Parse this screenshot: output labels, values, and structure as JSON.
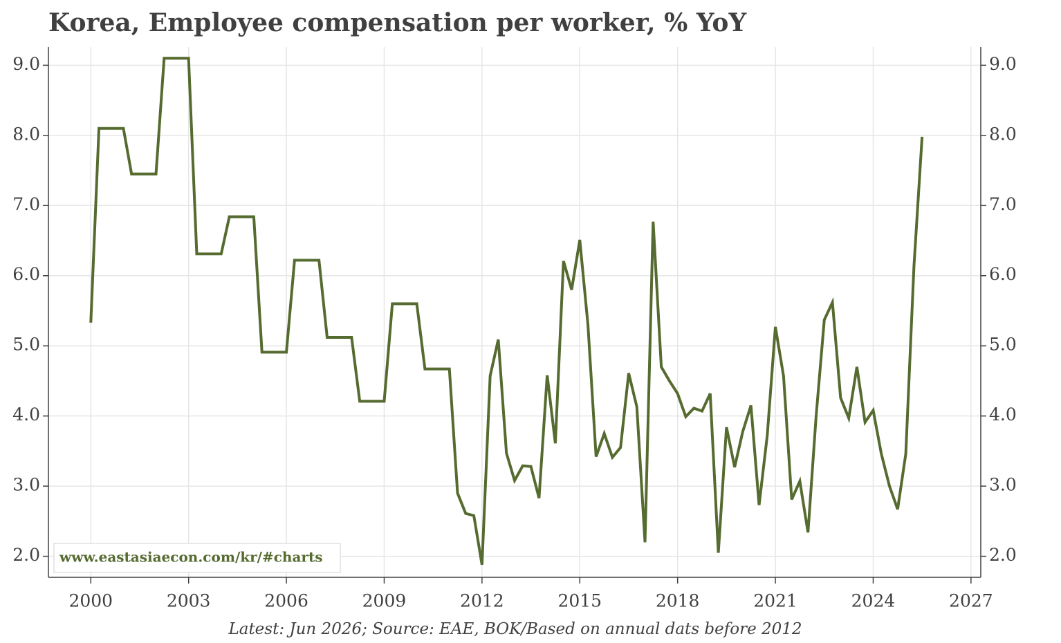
{
  "chart_data": {
    "type": "line",
    "title": "Korea, Employee compensation per worker, % YoY",
    "footer": "Latest: Jun 2026; Source: EAE, BOK/Based on annual dats before 2012",
    "watermark": "www.eastasiaecon.com/kr/#charts",
    "x": [
      2000,
      2000.25,
      2000.5,
      2000.75,
      2001,
      2001.25,
      2001.5,
      2001.75,
      2002,
      2002.25,
      2002.5,
      2002.75,
      2003,
      2003.25,
      2003.5,
      2003.75,
      2004,
      2004.25,
      2004.5,
      2004.75,
      2005,
      2005.25,
      2005.5,
      2005.75,
      2006,
      2006.25,
      2006.5,
      2006.75,
      2007,
      2007.25,
      2007.5,
      2007.75,
      2008,
      2008.25,
      2008.5,
      2008.75,
      2009,
      2009.25,
      2009.5,
      2009.75,
      2010,
      2010.25,
      2010.5,
      2010.75,
      2011,
      2011.25,
      2011.5,
      2011.75,
      2012,
      2012.25,
      2012.5,
      2012.75,
      2013,
      2013.25,
      2013.5,
      2013.75,
      2014,
      2014.25,
      2014.5,
      2014.75,
      2015,
      2015.25,
      2015.5,
      2015.75,
      2016,
      2016.25,
      2016.5,
      2016.75,
      2017,
      2017.25,
      2017.5,
      2017.75,
      2018,
      2018.25,
      2018.5,
      2018.75,
      2019,
      2019.25,
      2019.5,
      2019.75,
      2020,
      2020.25,
      2020.5,
      2020.75,
      2021,
      2021.25,
      2021.5,
      2021.75,
      2022,
      2022.25,
      2022.5,
      2022.75,
      2023,
      2023.25,
      2023.5,
      2023.75,
      2024,
      2024.25,
      2024.5,
      2024.75,
      2025,
      2025.25,
      2025.5
    ],
    "series": [
      {
        "color": "#566b30",
        "values": [
          5.33,
          8.1,
          8.1,
          8.1,
          8.1,
          7.45,
          7.45,
          7.45,
          7.45,
          9.1,
          9.1,
          9.1,
          9.1,
          6.31,
          6.31,
          6.31,
          6.31,
          6.84,
          6.84,
          6.84,
          6.84,
          4.91,
          4.91,
          4.91,
          4.91,
          6.22,
          6.22,
          6.22,
          6.22,
          5.12,
          5.12,
          5.12,
          5.12,
          4.21,
          4.21,
          4.21,
          4.21,
          5.6,
          5.6,
          5.6,
          5.6,
          4.67,
          4.67,
          4.67,
          4.67,
          2.9,
          2.61,
          2.58,
          1.88,
          4.57,
          5.09,
          3.47,
          3.08,
          3.29,
          3.28,
          2.83,
          4.58,
          3.61,
          6.21,
          5.8,
          6.51,
          5.3,
          3.42,
          3.75,
          3.41,
          3.55,
          4.61,
          4.13,
          2.2,
          6.77,
          4.7,
          4.5,
          4.32,
          3.99,
          4.11,
          4.07,
          4.32,
          2.05,
          3.84,
          3.27,
          3.78,
          4.15,
          2.73,
          3.72,
          5.27,
          4.57,
          2.81,
          3.07,
          2.34,
          4.0,
          5.37,
          5.62,
          4.26,
          3.97,
          4.7,
          3.91,
          4.08,
          3.46,
          3.0,
          2.67,
          3.46,
          6.13,
          7.98
        ]
      }
    ],
    "xlim": [
      1998.7,
      2027.3
    ],
    "xticks": [
      2000,
      2003,
      2006,
      2009,
      2012,
      2015,
      2018,
      2021,
      2024,
      2027
    ],
    "ylim": [
      1.7,
      9.26
    ],
    "yticks": [
      {
        "value": 2,
        "label": "2.0"
      },
      {
        "value": 3,
        "label": "3.0"
      },
      {
        "value": 4,
        "label": "4.0"
      },
      {
        "value": 5,
        "label": "5.0"
      },
      {
        "value": 6,
        "label": "6.0"
      },
      {
        "value": 7,
        "label": "7.0"
      },
      {
        "value": 8,
        "label": "8.0"
      },
      {
        "value": 9,
        "label": "9.0"
      }
    ],
    "grid": true
  }
}
